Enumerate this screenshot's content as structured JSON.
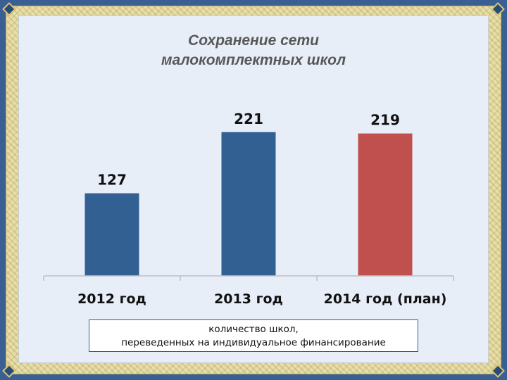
{
  "title": {
    "line1": "Сохранение сети",
    "line2": "малокомплектных школ"
  },
  "caption": {
    "line1": "количество школ,",
    "line2": "переведенных на индивидуальное финансирование"
  },
  "colors": {
    "bar_default": "#336092",
    "bar_highlight": "#c0504d",
    "background": "#e7eef8",
    "frame": "#e9dfa6",
    "outer": "#3a5f92"
  },
  "chart_data": {
    "type": "bar",
    "title": "",
    "xlabel": "",
    "ylabel": "",
    "categories": [
      "2012 год",
      "2013 год",
      "2014 год (план)"
    ],
    "values": [
      127,
      221,
      219
    ],
    "ylim": [
      0,
      250
    ],
    "grid": false,
    "legend": "none",
    "bar_colors": [
      "#336092",
      "#336092",
      "#c0504d"
    ]
  }
}
